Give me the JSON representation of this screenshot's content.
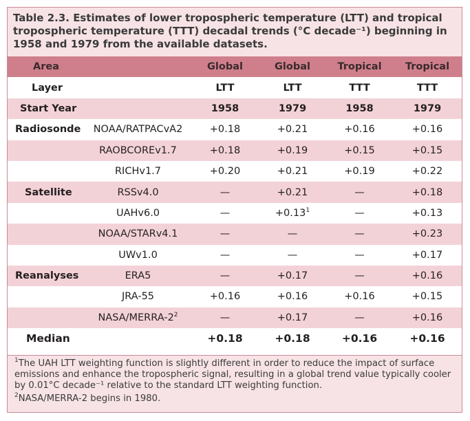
{
  "caption": "Table 2.3. Estimates of lower tropospheric temperature (LTT) and tropical tropospheric temperature (TTT) decadal trends (°C decade⁻¹) beginning in 1958 and 1979 from the available datasets.",
  "header": {
    "area": "Area",
    "cols": [
      "Global",
      "Global",
      "Tropical",
      "Tropical"
    ]
  },
  "layer": {
    "label": "Layer",
    "cols": [
      "LTT",
      "LTT",
      "TTT",
      "TTT"
    ]
  },
  "start_year": {
    "label": "Start Year",
    "cols": [
      "1958",
      "1979",
      "1958",
      "1979"
    ]
  },
  "rows": [
    {
      "group": "Radiosonde",
      "dataset": "NOAA/RATPACvA2",
      "values": [
        "+0.18",
        "+0.21",
        "+0.16",
        "+0.16"
      ]
    },
    {
      "group": "",
      "dataset": "RAOBCOREv1.7",
      "values": [
        "+0.18",
        "+0.19",
        "+0.15",
        "+0.15"
      ]
    },
    {
      "group": "",
      "dataset": "RICHv1.7",
      "values": [
        "+0.20",
        "+0.21",
        "+0.19",
        "+0.22"
      ]
    },
    {
      "group": "Satellite",
      "dataset": "RSSv4.0",
      "values": [
        "—",
        "+0.21",
        "—",
        "+0.18"
      ]
    },
    {
      "group": "",
      "dataset": "UAHv6.0",
      "values": [
        "—",
        "+0.13",
        "—",
        "+0.13"
      ]
    },
    {
      "group": "",
      "dataset": "NOAA/STARv4.1",
      "values": [
        "—",
        "—",
        "—",
        "+0.23"
      ]
    },
    {
      "group": "",
      "dataset": "UWv1.0",
      "values": [
        "—",
        "—",
        "—",
        "+0.17"
      ]
    },
    {
      "group": "Reanalyses",
      "dataset": "ERA5",
      "values": [
        "—",
        "+0.17",
        "—",
        "+0.16"
      ]
    },
    {
      "group": "",
      "dataset": "JRA-55",
      "values": [
        "+0.16",
        "+0.16",
        "+0.16",
        "+0.15"
      ]
    },
    {
      "group": "",
      "dataset": "NASA/MERRA-2",
      "values": [
        "—",
        "+0.17",
        "—",
        "+0.16"
      ]
    }
  ],
  "footnote_marks": {
    "uah_global_1979": "1",
    "merra": "2"
  },
  "median": {
    "label": "Median",
    "values": [
      "+0.18",
      "+0.18",
      "+0.16",
      "+0.16"
    ]
  },
  "footnotes": {
    "note1_mark": "1",
    "note1": "The UAH LTT weighting function is slightly different in order to reduce the impact of surface emissions and enhance the tropospheric signal, resulting in a global trend value typically cooler by 0.01°C decade⁻¹ relative to the standard LTT weighting function.",
    "note2_mark": "2",
    "note2": "NASA/MERRA-2 begins in 1980."
  }
}
